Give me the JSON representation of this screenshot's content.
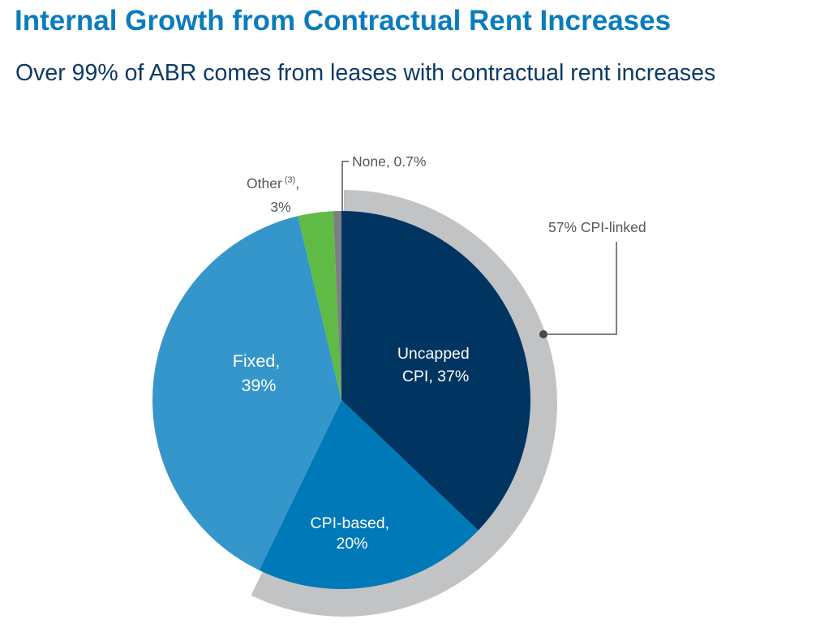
{
  "header": {
    "title": "Internal Growth from Contractual Rent Increases",
    "subtitle": "Over 99% of ABR comes from leases with contractual rent increases"
  },
  "chart_data": {
    "type": "pie",
    "title": "Internal Growth from Contractual Rent Increases",
    "subtitle": "Over 99% of ABR comes from leases with contractual rent increases",
    "slices": [
      {
        "name": "Uncapped CPI",
        "value": 37,
        "label_lines": [
          "Uncapped",
          "CPI, 37%"
        ],
        "color": "#003461"
      },
      {
        "name": "CPI-based",
        "value": 20,
        "label_lines": [
          "CPI-based,",
          "20%"
        ],
        "color": "#0079b8"
      },
      {
        "name": "Fixed",
        "value": 39,
        "label_lines": [
          "Fixed,",
          "39%"
        ],
        "color": "#3496ca"
      },
      {
        "name": "Other",
        "value": 3,
        "label_lines": [
          "Other",
          "3%"
        ],
        "label_sup": "(3)",
        "label_suffix": ",",
        "color": "#5fbb46"
      },
      {
        "name": "None",
        "value": 0.7,
        "label_lines": [
          "None, 0.7%"
        ],
        "color": "#7b7f82"
      }
    ],
    "highlight_arc": {
      "label": "57% CPI-linked",
      "covers": [
        "Uncapped CPI",
        "CPI-based"
      ],
      "value": 57,
      "color": "#c1c3c5"
    },
    "start": "12 o'clock",
    "direction": "clockwise"
  }
}
